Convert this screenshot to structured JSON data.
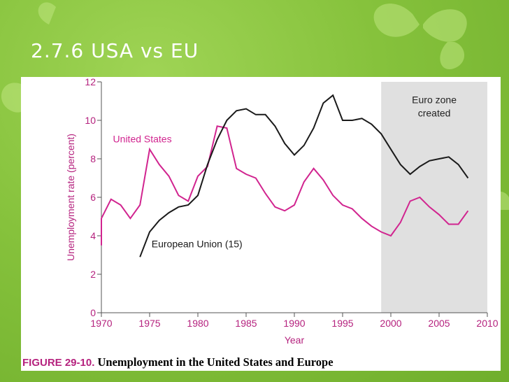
{
  "slide": {
    "title": "2.7.6 USA vs EU"
  },
  "colors": {
    "us": "#d1248f",
    "eu": "#1a1a1a",
    "shade": "#e0e0e0",
    "axis": "#b5227e",
    "background": "#86c23c"
  },
  "caption": {
    "figure_label": "FIGURE 29-10.",
    "text": "Unemployment in the United States and Europe"
  },
  "chart_data": {
    "type": "line",
    "title": "",
    "xlabel": "Year",
    "ylabel": "Unemployment rate (percent)",
    "xlim": [
      1970,
      2010
    ],
    "ylim": [
      0,
      12
    ],
    "xticks": [
      1970,
      1975,
      1980,
      1985,
      1990,
      1995,
      2000,
      2005,
      2010
    ],
    "yticks": [
      0,
      2,
      4,
      6,
      8,
      10,
      12
    ],
    "shaded_region": {
      "x_start": 1999,
      "x_end": 2010,
      "label_line1": "Euro zone",
      "label_line2": "created"
    },
    "series": [
      {
        "name": "United States",
        "x": [
          1969,
          1970,
          1971,
          1972,
          1973,
          1974,
          1975,
          1976,
          1977,
          1978,
          1979,
          1980,
          1981,
          1982,
          1983,
          1984,
          1985,
          1986,
          1987,
          1988,
          1989,
          1990,
          1991,
          1992,
          1993,
          1994,
          1995,
          1996,
          1997,
          1998,
          1999,
          2000,
          2001,
          2002,
          2003,
          2004,
          2005,
          2006,
          2007,
          2008
        ],
        "y": [
          3.5,
          4.9,
          5.9,
          5.6,
          4.9,
          5.6,
          8.5,
          7.7,
          7.1,
          6.1,
          5.8,
          7.1,
          7.6,
          9.7,
          9.6,
          7.5,
          7.2,
          7.0,
          6.2,
          5.5,
          5.3,
          5.6,
          6.8,
          7.5,
          6.9,
          6.1,
          5.6,
          5.4,
          4.9,
          4.5,
          4.2,
          4.0,
          4.7,
          5.8,
          6.0,
          5.5,
          5.1,
          4.6,
          4.6,
          5.3
        ]
      },
      {
        "name": "European Union (15)",
        "x": [
          1974,
          1975,
          1976,
          1977,
          1978,
          1979,
          1980,
          1981,
          1982,
          1983,
          1984,
          1985,
          1986,
          1987,
          1988,
          1989,
          1990,
          1991,
          1992,
          1993,
          1994,
          1995,
          1996,
          1997,
          1998,
          1999,
          2000,
          2001,
          2002,
          2003,
          2004,
          2005,
          2006,
          2007,
          2008
        ],
        "y": [
          2.9,
          4.2,
          4.8,
          5.2,
          5.5,
          5.6,
          6.1,
          7.7,
          9.0,
          10.0,
          10.5,
          10.6,
          10.3,
          10.3,
          9.7,
          8.8,
          8.2,
          8.7,
          9.6,
          10.9,
          11.3,
          10.0,
          10.0,
          10.1,
          9.8,
          9.3,
          8.5,
          7.7,
          7.2,
          7.6,
          7.9,
          8.0,
          8.1,
          7.7,
          7.0
        ]
      }
    ]
  }
}
